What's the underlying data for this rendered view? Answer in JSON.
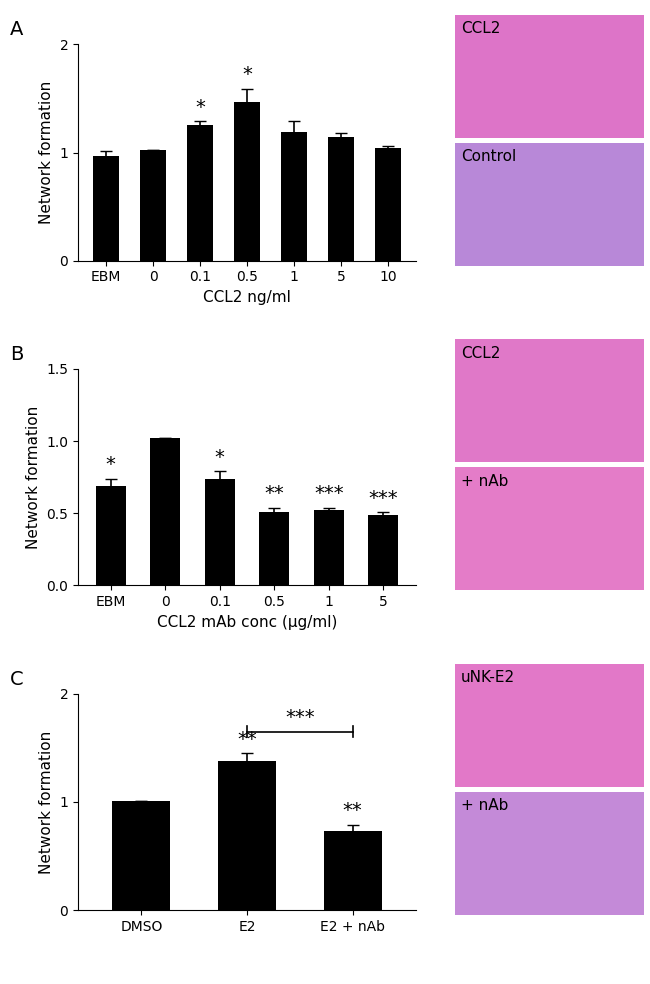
{
  "chart_data": [
    {
      "type": "bar",
      "title": "A",
      "x_label": "CCL2 ng/ml",
      "y_label": "Network formation",
      "categories": [
        "EBM",
        "0",
        "0.1",
        "0.5",
        "1",
        "5",
        "10"
      ],
      "values": [
        0.97,
        1.02,
        1.25,
        1.47,
        1.19,
        1.14,
        1.04
      ],
      "errors": [
        0.04,
        0,
        0.04,
        0.12,
        0.1,
        0.04,
        0.02
      ],
      "annotations": [
        null,
        null,
        "*",
        "*",
        null,
        null,
        null
      ],
      "color": "#000000",
      "ylim": [
        0,
        2
      ],
      "yticks": [
        0,
        1,
        2
      ],
      "image_labels": [
        "CCL2",
        "Control"
      ]
    },
    {
      "type": "bar",
      "title": "B",
      "x_label": "CCL2 mAb conc (µg/ml)",
      "y_label": "Network formation",
      "categories": [
        "EBM",
        "0",
        "0.1",
        "0.5",
        "1",
        "5"
      ],
      "values": [
        0.69,
        1.02,
        0.74,
        0.51,
        0.52,
        0.49
      ],
      "errors": [
        0.05,
        0,
        0.05,
        0.03,
        0.02,
        0.02
      ],
      "annotations": [
        "*",
        null,
        "*",
        "**",
        "***",
        "***"
      ],
      "color": "#000000",
      "ylim": [
        0.0,
        1.5
      ],
      "yticks": [
        0.0,
        0.5,
        1.0,
        1.5
      ],
      "image_labels": [
        "CCL2",
        "+ nAb"
      ]
    },
    {
      "type": "bar",
      "title": "C",
      "y_label": "Network formation",
      "categories": [
        "DMSO",
        "E2",
        "E2 + nAb"
      ],
      "values": [
        1.01,
        1.38,
        0.73
      ],
      "errors": [
        0,
        0.07,
        0.06
      ],
      "annotations": [
        null,
        "**",
        "**"
      ],
      "bracket": {
        "from": "E2",
        "to": "E2 + nAb",
        "label": "***"
      },
      "color": "#000000",
      "ylim": [
        0,
        2
      ],
      "yticks": [
        0,
        1,
        2
      ],
      "image_labels": [
        "uNK-E2",
        "+ nAb"
      ]
    }
  ]
}
